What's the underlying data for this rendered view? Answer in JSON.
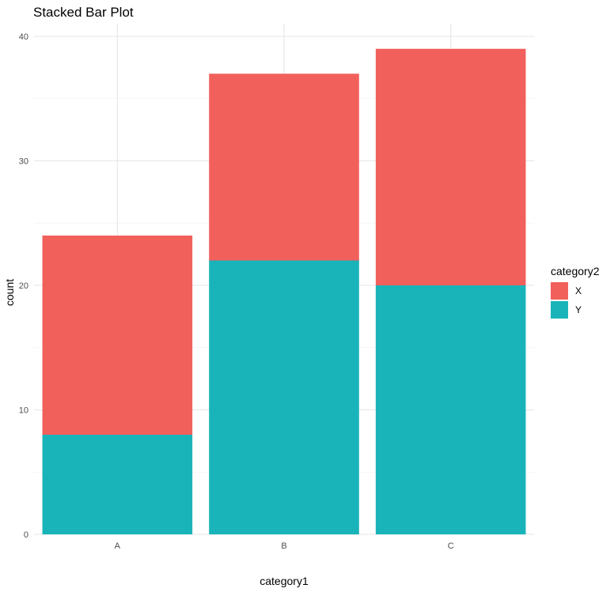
{
  "chart_data": {
    "type": "bar",
    "stacked": true,
    "title": "Stacked Bar Plot",
    "xlabel": "category1",
    "ylabel": "count",
    "categories": [
      "A",
      "B",
      "C"
    ],
    "series": [
      {
        "name": "Y",
        "color": "#19b4b9",
        "values": [
          8,
          22,
          20
        ]
      },
      {
        "name": "X",
        "color": "#f2605c",
        "values": [
          16,
          15,
          19
        ]
      }
    ],
    "ylim": [
      0,
      40
    ],
    "yticks": [
      0,
      10,
      20,
      30,
      40
    ],
    "grid": true,
    "legend": {
      "title": "category2",
      "position": "right",
      "entries": [
        {
          "label": "X",
          "color": "#f2605c"
        },
        {
          "label": "Y",
          "color": "#19b4b9"
        }
      ]
    }
  }
}
